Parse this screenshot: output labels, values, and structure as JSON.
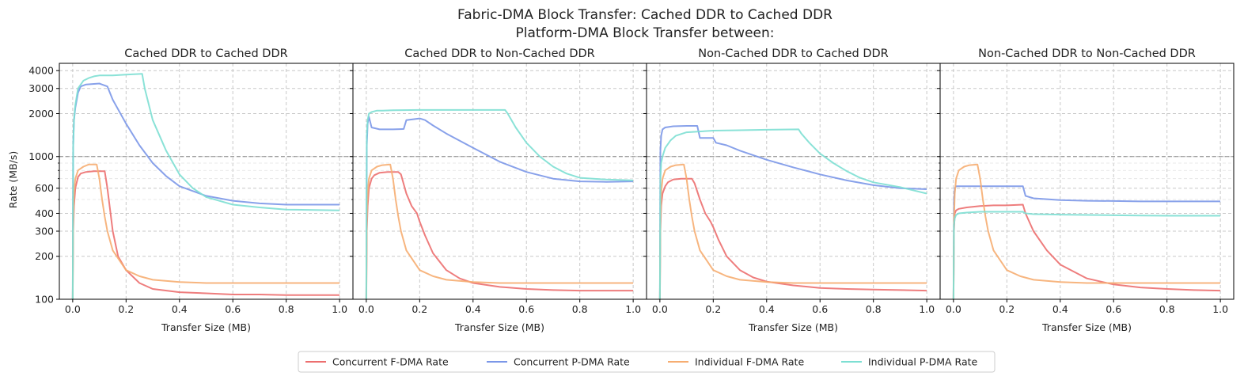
{
  "figure": {
    "suptitle_line1": "Fabric-DMA Block Transfer: Cached DDR to Cached DDR",
    "suptitle_line2": "Platform-DMA Block Transfer between:"
  },
  "chart_data": {
    "type": "line",
    "y_scale": "log",
    "ylabel": "Rate (MB/s)",
    "xlabel": "Transfer Size (MB)",
    "xlim": [
      0,
      1.0
    ],
    "ylim": [
      100,
      4500
    ],
    "x_ticks": [
      0.0,
      0.2,
      0.4,
      0.6,
      0.8,
      1.0
    ],
    "x_tick_labels": [
      "0.0",
      "0.2",
      "0.4",
      "0.6",
      "0.8",
      "1.0"
    ],
    "y_ticks": [
      100,
      200,
      300,
      400,
      600,
      1000,
      2000,
      3000,
      4000
    ],
    "y_tick_labels": [
      "100",
      "200",
      "300",
      "400",
      "600",
      "1000",
      "2000",
      "3000",
      "4000"
    ],
    "reference_line_y": 1000,
    "grid": true,
    "legend_position": "bottom-center",
    "colors": {
      "Concurrent F-DMA Rate": "#ec6f6f",
      "Concurrent P-DMA Rate": "#7b97e8",
      "Individual F-DMA Rate": "#f6ad71",
      "Individual P-DMA Rate": "#7ddfd3"
    },
    "legend": [
      "Concurrent F-DMA Rate",
      "Concurrent P-DMA Rate",
      "Individual F-DMA Rate",
      "Individual P-DMA Rate"
    ],
    "panels": [
      {
        "title": "Cached DDR to Cached DDR",
        "series": [
          {
            "name": "Concurrent F-DMA Rate",
            "x": [
              0,
              0.002,
              0.005,
              0.01,
              0.02,
              0.03,
              0.05,
              0.08,
              0.12,
              0.13,
              0.15,
              0.17,
              0.2,
              0.25,
              0.3,
              0.4,
              0.5,
              0.6,
              0.7,
              0.8,
              1.0
            ],
            "y": [
              100,
              300,
              450,
              600,
              720,
              760,
              780,
              790,
              790,
              600,
              300,
              200,
              160,
              130,
              118,
              112,
              110,
              108,
              108,
              107,
              107
            ]
          },
          {
            "name": "Concurrent P-DMA Rate",
            "x": [
              0,
              0.002,
              0.005,
              0.01,
              0.02,
              0.03,
              0.05,
              0.1,
              0.13,
              0.15,
              0.2,
              0.25,
              0.3,
              0.35,
              0.4,
              0.5,
              0.6,
              0.7,
              0.8,
              0.9,
              1.0
            ],
            "y": [
              100,
              1200,
              1800,
              2200,
              2800,
              3100,
              3200,
              3250,
              3100,
              2500,
              1700,
              1200,
              900,
              730,
              620,
              530,
              490,
              470,
              460,
              460,
              460
            ]
          },
          {
            "name": "Individual F-DMA Rate",
            "x": [
              0,
              0.002,
              0.005,
              0.01,
              0.02,
              0.04,
              0.06,
              0.09,
              0.1,
              0.11,
              0.12,
              0.13,
              0.15,
              0.2,
              0.25,
              0.3,
              0.4,
              0.5,
              0.6,
              0.8,
              1.0
            ],
            "y": [
              100,
              350,
              550,
              700,
              800,
              850,
              880,
              880,
              700,
              500,
              380,
              300,
              220,
              160,
              145,
              137,
              132,
              130,
              130,
              130,
              130
            ]
          },
          {
            "name": "Individual P-DMA Rate",
            "x": [
              0,
              0.002,
              0.005,
              0.01,
              0.02,
              0.04,
              0.06,
              0.08,
              0.1,
              0.15,
              0.2,
              0.26,
              0.27,
              0.3,
              0.35,
              0.4,
              0.45,
              0.5,
              0.6,
              0.7,
              0.8,
              1.0
            ],
            "y": [
              100,
              1200,
              1800,
              2300,
              3000,
              3400,
              3550,
              3650,
              3700,
              3700,
              3750,
              3800,
              3000,
              1800,
              1100,
              750,
              600,
              520,
              460,
              440,
              425,
              420
            ]
          }
        ]
      },
      {
        "title": "Cached DDR to Non-Cached DDR",
        "series": [
          {
            "name": "Concurrent F-DMA Rate",
            "x": [
              0,
              0.002,
              0.005,
              0.01,
              0.02,
              0.03,
              0.05,
              0.08,
              0.12,
              0.13,
              0.15,
              0.17,
              0.19,
              0.2,
              0.22,
              0.25,
              0.3,
              0.35,
              0.4,
              0.5,
              0.6,
              0.7,
              0.8,
              1.0
            ],
            "y": [
              100,
              300,
              450,
              600,
              700,
              740,
              770,
              780,
              780,
              750,
              550,
              450,
              400,
              350,
              280,
              210,
              160,
              140,
              130,
              122,
              118,
              116,
              115,
              115
            ]
          },
          {
            "name": "Concurrent P-DMA Rate",
            "x": [
              0,
              0.002,
              0.005,
              0.01,
              0.02,
              0.05,
              0.1,
              0.14,
              0.15,
              0.2,
              0.22,
              0.25,
              0.3,
              0.4,
              0.5,
              0.6,
              0.7,
              0.8,
              0.9,
              1.0
            ],
            "y": [
              100,
              1200,
              1700,
              1900,
              1600,
              1550,
              1550,
              1560,
              1800,
              1850,
              1800,
              1650,
              1450,
              1150,
              920,
              780,
              700,
              670,
              665,
              670
            ]
          },
          {
            "name": "Individual F-DMA Rate",
            "x": [
              0,
              0.002,
              0.005,
              0.01,
              0.02,
              0.04,
              0.06,
              0.09,
              0.1,
              0.11,
              0.12,
              0.13,
              0.15,
              0.2,
              0.25,
              0.3,
              0.4,
              0.5,
              0.6,
              0.8,
              1.0
            ],
            "y": [
              100,
              350,
              550,
              700,
              800,
              850,
              870,
              880,
              700,
              500,
              380,
              300,
              220,
              160,
              145,
              137,
              132,
              130,
              130,
              130,
              130
            ]
          },
          {
            "name": "Individual P-DMA Rate",
            "x": [
              0,
              0.002,
              0.005,
              0.01,
              0.02,
              0.04,
              0.06,
              0.1,
              0.2,
              0.3,
              0.4,
              0.52,
              0.53,
              0.56,
              0.6,
              0.65,
              0.7,
              0.75,
              0.8,
              0.9,
              1.0
            ],
            "y": [
              100,
              1400,
              1800,
              2000,
              2050,
              2100,
              2100,
              2110,
              2120,
              2120,
              2120,
              2120,
              2000,
              1600,
              1250,
              1000,
              850,
              760,
              710,
              690,
              680
            ]
          }
        ]
      },
      {
        "title": "Non-Cached DDR to Cached DDR",
        "series": [
          {
            "name": "Concurrent F-DMA Rate",
            "x": [
              0,
              0.002,
              0.005,
              0.01,
              0.02,
              0.03,
              0.05,
              0.08,
              0.12,
              0.13,
              0.15,
              0.17,
              0.19,
              0.2,
              0.22,
              0.25,
              0.3,
              0.35,
              0.4,
              0.5,
              0.6,
              0.7,
              0.8,
              1.0
            ],
            "y": [
              100,
              300,
              450,
              550,
              620,
              660,
              690,
              700,
              700,
              650,
              500,
              400,
              350,
              320,
              260,
              200,
              160,
              142,
              133,
              125,
              120,
              118,
              117,
              115
            ]
          },
          {
            "name": "Concurrent P-DMA Rate",
            "x": [
              0,
              0.002,
              0.005,
              0.01,
              0.02,
              0.05,
              0.1,
              0.14,
              0.15,
              0.2,
              0.21,
              0.25,
              0.3,
              0.4,
              0.5,
              0.6,
              0.7,
              0.8,
              0.9,
              1.0
            ],
            "y": [
              100,
              1100,
              1400,
              1550,
              1600,
              1630,
              1640,
              1640,
              1350,
              1350,
              1250,
              1200,
              1100,
              950,
              840,
              750,
              680,
              630,
              600,
              590
            ]
          },
          {
            "name": "Individual F-DMA Rate",
            "x": [
              0,
              0.002,
              0.005,
              0.01,
              0.02,
              0.04,
              0.06,
              0.09,
              0.1,
              0.11,
              0.12,
              0.13,
              0.15,
              0.2,
              0.25,
              0.3,
              0.4,
              0.5,
              0.6,
              0.8,
              1.0
            ],
            "y": [
              100,
              350,
              550,
              700,
              800,
              850,
              870,
              880,
              700,
              500,
              380,
              300,
              220,
              160,
              145,
              137,
              132,
              130,
              130,
              130,
              130
            ]
          },
          {
            "name": "Individual P-DMA Rate",
            "x": [
              0,
              0.002,
              0.005,
              0.01,
              0.02,
              0.04,
              0.06,
              0.1,
              0.2,
              0.3,
              0.4,
              0.52,
              0.53,
              0.56,
              0.6,
              0.65,
              0.7,
              0.75,
              0.8,
              0.9,
              1.0
            ],
            "y": [
              100,
              700,
              900,
              1000,
              1150,
              1300,
              1400,
              1480,
              1520,
              1530,
              1540,
              1550,
              1450,
              1250,
              1050,
              900,
              790,
              710,
              660,
              610,
              550
            ]
          }
        ]
      },
      {
        "title": "Non-Cached DDR to Non-Cached DDR",
        "series": [
          {
            "name": "Concurrent F-DMA Rate",
            "x": [
              0,
              0.002,
              0.005,
              0.01,
              0.02,
              0.05,
              0.1,
              0.15,
              0.2,
              0.26,
              0.27,
              0.3,
              0.35,
              0.4,
              0.5,
              0.6,
              0.7,
              0.8,
              0.9,
              1.0
            ],
            "y": [
              100,
              300,
              400,
              420,
              430,
              440,
              450,
              455,
              455,
              460,
              400,
              300,
              220,
              175,
              140,
              127,
              121,
              118,
              116,
              115
            ]
          },
          {
            "name": "Concurrent P-DMA Rate",
            "x": [
              0,
              0.002,
              0.005,
              0.01,
              0.02,
              0.05,
              0.1,
              0.15,
              0.2,
              0.26,
              0.27,
              0.3,
              0.4,
              0.5,
              0.6,
              0.7,
              0.8,
              0.9,
              1.0
            ],
            "y": [
              100,
              500,
              600,
              620,
              620,
              620,
              620,
              620,
              620,
              620,
              530,
              510,
              495,
              490,
              488,
              485,
              485,
              485,
              485
            ]
          },
          {
            "name": "Individual F-DMA Rate",
            "x": [
              0,
              0.002,
              0.005,
              0.01,
              0.02,
              0.04,
              0.06,
              0.09,
              0.1,
              0.11,
              0.12,
              0.13,
              0.15,
              0.2,
              0.25,
              0.3,
              0.4,
              0.5,
              0.6,
              0.8,
              1.0
            ],
            "y": [
              100,
              350,
              550,
              700,
              800,
              850,
              870,
              880,
              700,
              500,
              380,
              300,
              220,
              160,
              145,
              137,
              132,
              130,
              130,
              130,
              130
            ]
          },
          {
            "name": "Individual P-DMA Rate",
            "x": [
              0,
              0.002,
              0.005,
              0.01,
              0.02,
              0.05,
              0.1,
              0.2,
              0.26,
              0.27,
              0.3,
              0.4,
              0.5,
              0.6,
              0.7,
              0.8,
              0.9,
              1.0
            ],
            "y": [
              100,
              330,
              370,
              390,
              400,
              405,
              410,
              410,
              410,
              400,
              395,
              392,
              390,
              388,
              386,
              385,
              385,
              385
            ]
          }
        ]
      }
    ]
  }
}
